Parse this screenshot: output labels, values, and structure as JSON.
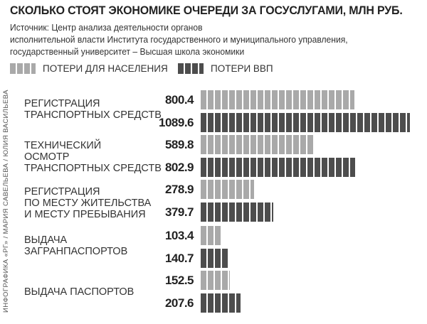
{
  "chart_data": {
    "type": "bar",
    "orientation": "horizontal",
    "title": "СКОЛЬКО СТОЯТ ЭКОНОМИКЕ ОЧЕРЕДИ ЗА ГОСУСЛУГАМИ, МЛН РУБ.",
    "source": [
      "Источник: Центр анализа деятельности органов",
      "исполнительной власти Института государственного и муниципального управления,",
      "государственный университет – Высшая школа экономики"
    ],
    "credit": "ИНФОГРАФИКА «РГ» / МАРИЯ САВЕЛЬЕВА / ЮЛИЯ ВАСИЛЬЕВА",
    "categories": [
      "РЕГИСТРАЦИЯ\nТРАНСПОРТНЫХ СРЕДСТВ",
      "ТЕХНИЧЕСКИЙ\nОСМОТР\nТРАНСПОРТНЫХ СРЕДСТВ",
      "РЕГИСТРАЦИЯ\nПО МЕСТУ ЖИТЕЛЬСТВА\nИ МЕСТУ ПРЕБЫВАНИЯ",
      "ВЫДАЧА\nЗАГРАНПАСПОРТОВ",
      "ВЫДАЧА ПАСПОРТОВ"
    ],
    "series": [
      {
        "name": "ПОТЕРИ ДЛЯ НАСЕЛЕНИЯ",
        "color": "#a9a9a9",
        "values": [
          800.4,
          589.8,
          278.9,
          103.4,
          152.5
        ],
        "labels": [
          "800.4",
          "589.8",
          "278.9",
          "103.4",
          "152.5"
        ]
      },
      {
        "name": "ПОТЕРИ ВВП",
        "color": "#4d4d4d",
        "values": [
          1089.6,
          802.9,
          379.7,
          140.7,
          207.6
        ],
        "labels": [
          "1089.6",
          "802.9",
          "379.7",
          "140.7",
          "207.6"
        ]
      }
    ],
    "xlim": [
      0,
      1100
    ],
    "legend": "top-left",
    "grid": false
  }
}
